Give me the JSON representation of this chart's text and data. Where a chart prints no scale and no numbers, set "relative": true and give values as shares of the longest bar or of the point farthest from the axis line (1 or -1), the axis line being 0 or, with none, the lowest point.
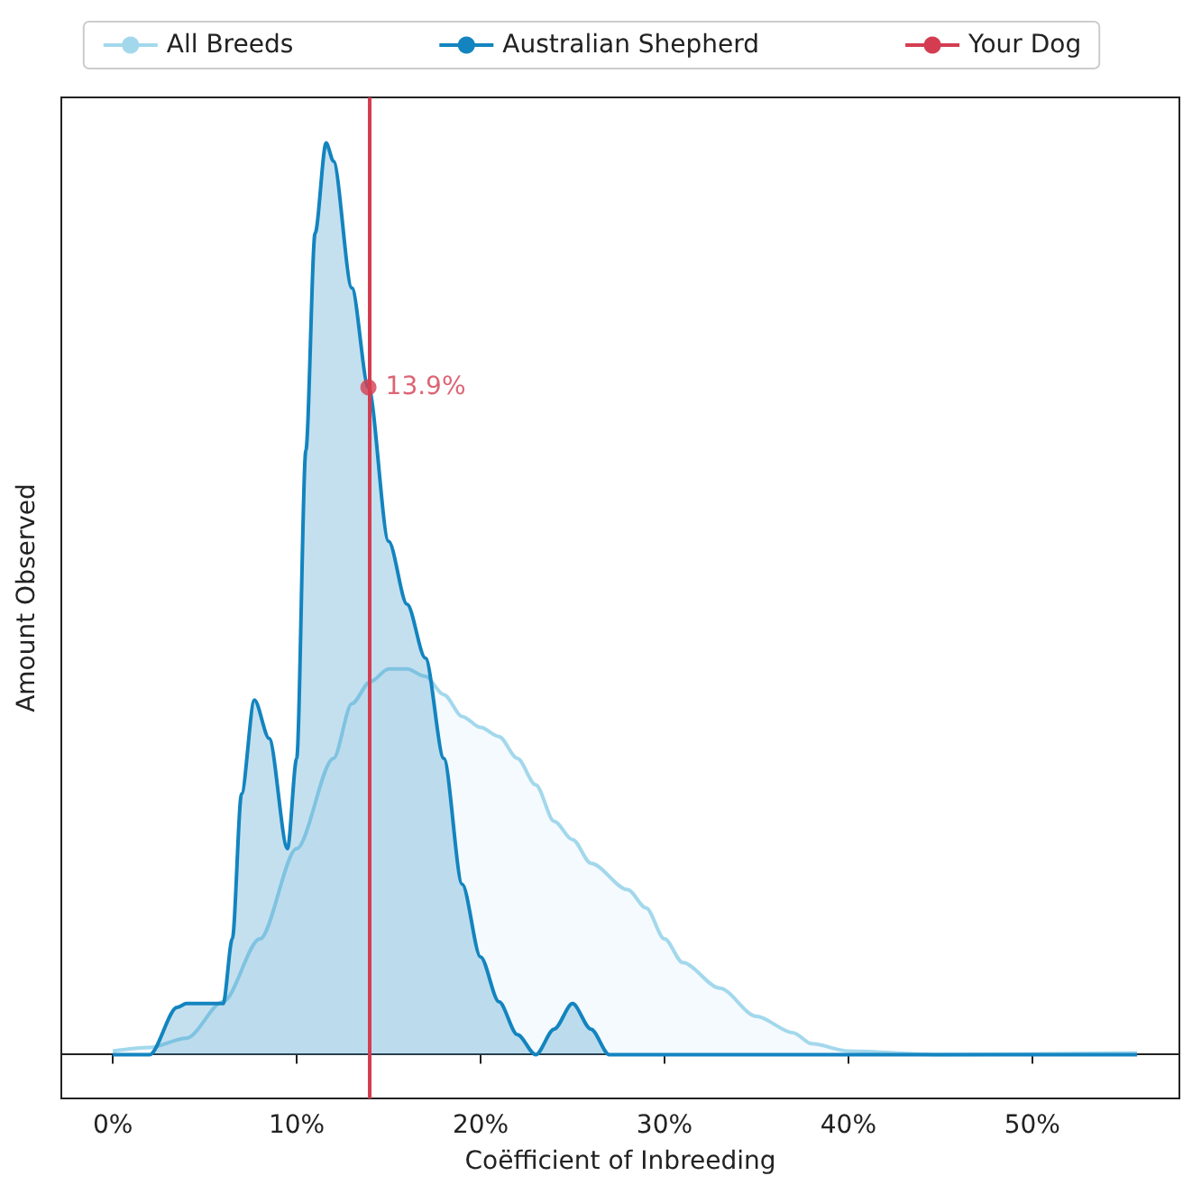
{
  "chart_data": {
    "type": "area",
    "relative": true,
    "xlabel": "Coëfficient of Inbreeding",
    "ylabel": "Amount Observed",
    "xlim": [
      -2.8,
      58
    ],
    "xticks": [
      {
        "value": 0,
        "label": "0%"
      },
      {
        "value": 10,
        "label": "10%"
      },
      {
        "value": 20,
        "label": "20%"
      },
      {
        "value": 30,
        "label": "30%"
      },
      {
        "value": 40,
        "label": "40%"
      },
      {
        "value": 50,
        "label": "50%"
      }
    ],
    "series": [
      {
        "name": "All Breeds",
        "color": "#a3d8ec",
        "x": [
          0,
          2,
          4,
          6,
          8,
          10,
          12,
          13,
          14,
          15,
          16,
          17,
          18,
          19,
          20,
          21,
          22,
          23,
          24,
          25,
          26,
          28,
          29,
          30,
          31,
          33,
          35,
          37,
          38,
          40,
          45,
          55.7
        ],
        "values": [
          0.004,
          0.008,
          0.018,
          0.058,
          0.127,
          0.226,
          0.325,
          0.385,
          0.409,
          0.423,
          0.423,
          0.415,
          0.395,
          0.371,
          0.359,
          0.349,
          0.325,
          0.296,
          0.256,
          0.236,
          0.21,
          0.181,
          0.161,
          0.127,
          0.101,
          0.073,
          0.042,
          0.024,
          0.012,
          0.004,
          0,
          0.002
        ]
      },
      {
        "name": "Australian Shepherd",
        "color": "#1384bf",
        "x": [
          0,
          2,
          3.5,
          4,
          6,
          6.5,
          7,
          7.7,
          8.5,
          9.5,
          10,
          10.5,
          11,
          11.6,
          12,
          13,
          13.9,
          15,
          16,
          17,
          18,
          19,
          20,
          21,
          22,
          23,
          24,
          25,
          26,
          27,
          30,
          40,
          55.7
        ],
        "values": [
          0,
          0,
          0.052,
          0.056,
          0.056,
          0.127,
          0.286,
          0.389,
          0.347,
          0.226,
          0.325,
          0.663,
          0.901,
          1,
          0.98,
          0.841,
          0.732,
          0.563,
          0.494,
          0.435,
          0.325,
          0.187,
          0.107,
          0.058,
          0.022,
          0,
          0.028,
          0.056,
          0.028,
          0,
          0,
          0,
          0
        ]
      }
    ],
    "ref_lines": [
      {
        "axis": "x",
        "value": 13.9,
        "label": "Your Dog",
        "color": "#d43d51"
      }
    ],
    "annotations": [
      {
        "text": "13.9%",
        "x": 13.9,
        "y": 0.732
      }
    ],
    "marker": "none",
    "legend": "top",
    "grid": false
  }
}
